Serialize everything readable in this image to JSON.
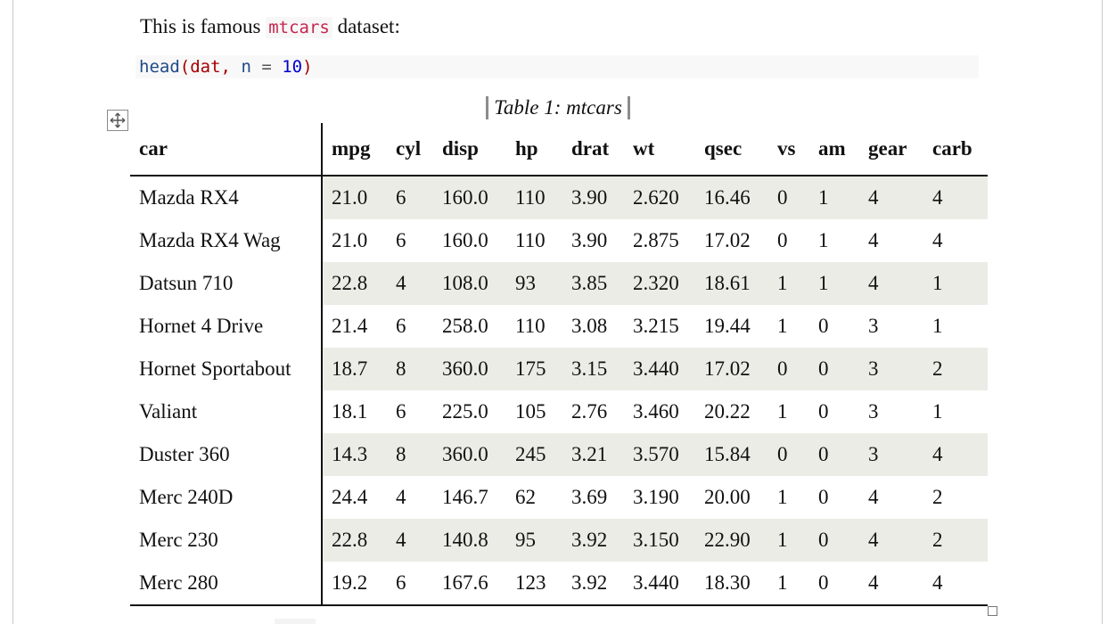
{
  "intro": {
    "before": "This is famous ",
    "code": "mtcars",
    "after": " dataset:"
  },
  "code": {
    "fn": "head",
    "open": "(",
    "var": "dat",
    "comma": ", ",
    "arg": "n",
    "op": " = ",
    "num": "10",
    "close": ")"
  },
  "caption": "Table 1: mtcars",
  "icons": {
    "move": "move-cross-icon",
    "resize": "resize-square-icon"
  },
  "colors": {
    "stripe": "#ecece6",
    "inline_code": "#c7254e",
    "code_function": "#204a87",
    "code_paren": "#a40000",
    "code_number": "#0000cf"
  },
  "table": {
    "headers": [
      "car",
      "mpg",
      "cyl",
      "disp",
      "hp",
      "drat",
      "wt",
      "qsec",
      "vs",
      "am",
      "gear",
      "carb"
    ],
    "rows": [
      [
        "Mazda RX4",
        "21.0",
        "6",
        "160.0",
        "110",
        "3.90",
        "2.620",
        "16.46",
        "0",
        "1",
        "4",
        "4"
      ],
      [
        "Mazda RX4 Wag",
        "21.0",
        "6",
        "160.0",
        "110",
        "3.90",
        "2.875",
        "17.02",
        "0",
        "1",
        "4",
        "4"
      ],
      [
        "Datsun 710",
        "22.8",
        "4",
        "108.0",
        "93",
        "3.85",
        "2.320",
        "18.61",
        "1",
        "1",
        "4",
        "1"
      ],
      [
        "Hornet 4 Drive",
        "21.4",
        "6",
        "258.0",
        "110",
        "3.08",
        "3.215",
        "19.44",
        "1",
        "0",
        "3",
        "1"
      ],
      [
        "Hornet Sportabout",
        "18.7",
        "8",
        "360.0",
        "175",
        "3.15",
        "3.440",
        "17.02",
        "0",
        "0",
        "3",
        "2"
      ],
      [
        "Valiant",
        "18.1",
        "6",
        "225.0",
        "105",
        "2.76",
        "3.460",
        "20.22",
        "1",
        "0",
        "3",
        "1"
      ],
      [
        "Duster 360",
        "14.3",
        "8",
        "360.0",
        "245",
        "3.21",
        "3.570",
        "15.84",
        "0",
        "0",
        "3",
        "4"
      ],
      [
        "Merc 240D",
        "24.4",
        "4",
        "146.7",
        "62",
        "3.69",
        "3.190",
        "20.00",
        "1",
        "0",
        "4",
        "2"
      ],
      [
        "Merc 230",
        "22.8",
        "4",
        "140.8",
        "95",
        "3.92",
        "3.150",
        "22.90",
        "1",
        "0",
        "4",
        "2"
      ],
      [
        "Merc 280",
        "19.2",
        "6",
        "167.6",
        "123",
        "3.92",
        "3.440",
        "18.30",
        "1",
        "0",
        "4",
        "4"
      ]
    ]
  }
}
